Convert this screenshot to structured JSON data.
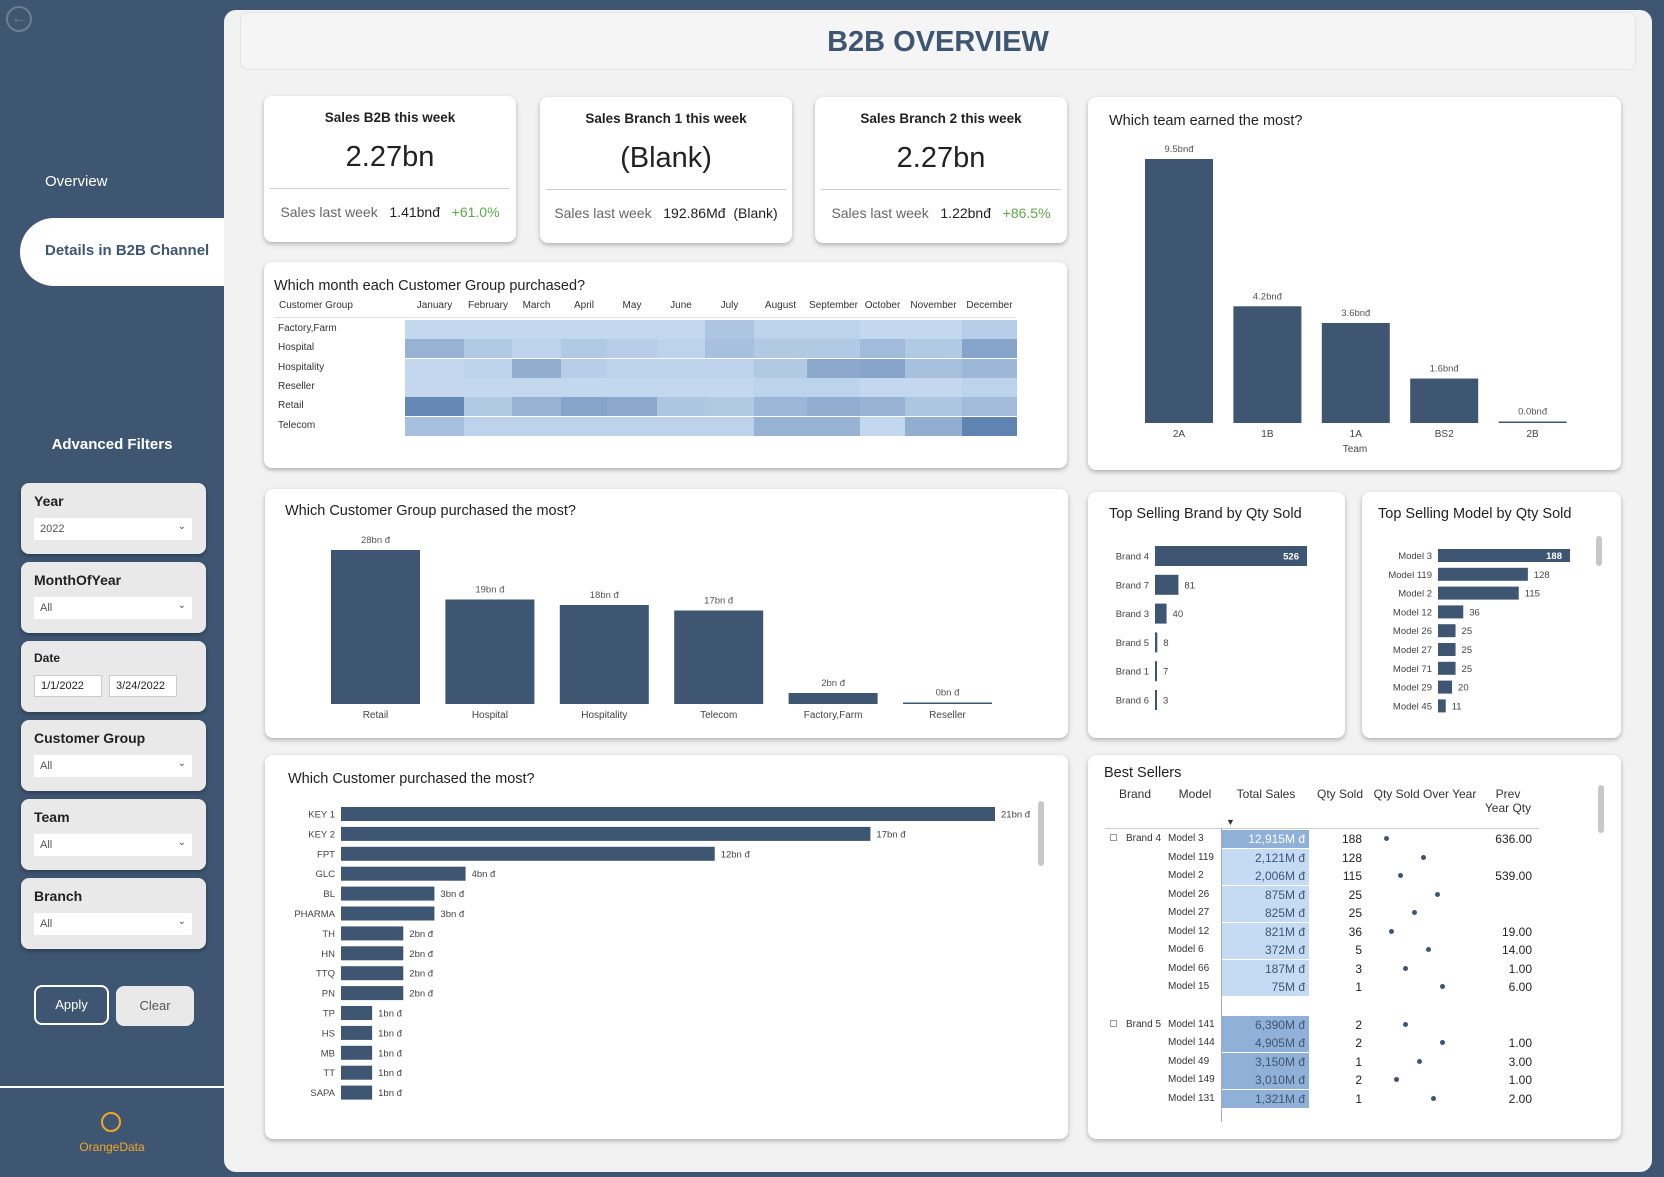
{
  "sidebar": {
    "nav": [
      {
        "label": "Overview"
      },
      {
        "label": "Details in B2B Channel"
      }
    ],
    "advanced_title": "Advanced Filters",
    "filters": {
      "year": {
        "label": "Year",
        "value": "2022"
      },
      "month": {
        "label": "MonthOfYear",
        "value": "All"
      },
      "date": {
        "label": "Date",
        "from": "1/1/2022",
        "to": "3/24/2022"
      },
      "customer_group": {
        "label": "Customer Group",
        "value": "All"
      },
      "team": {
        "label": "Team",
        "value": "All"
      },
      "branch": {
        "label": "Branch",
        "value": "All"
      }
    },
    "apply_label": "Apply",
    "clear_label": "Clear",
    "logo_text": "OrangeData"
  },
  "header": {
    "title": "B2B OVERVIEW"
  },
  "kpis": [
    {
      "title": "Sales B2B this week",
      "value": "2.27bn",
      "last_label": "Sales last week",
      "last_value": "1.41bnđ",
      "change": "+61.0%"
    },
    {
      "title": "Sales Branch 1 this week",
      "value": "(Blank)",
      "last_label": "Sales last week",
      "last_value": "192.86Mđ",
      "change": "(Blank)"
    },
    {
      "title": "Sales Branch 2 this week",
      "value": "2.27bn",
      "last_label": "Sales last week",
      "last_value": "1.22bnđ",
      "change": "+86.5%"
    }
  ],
  "colors": {
    "bar": "#3e5672",
    "green": "#5fa84b",
    "heat_base": "#c8dcf2",
    "heat_dark": "#5a7fae",
    "sales_cell": "#c4dbf3",
    "sales_dark": "#8fb1d8"
  },
  "heatmap": {
    "title": "Which month each Customer Group purchased?",
    "col_header": "Customer Group",
    "months": [
      "January",
      "February",
      "March",
      "April",
      "May",
      "June",
      "July",
      "August",
      "September",
      "October",
      "November",
      "December"
    ],
    "groups": [
      "Factory,Farm",
      "Hospital",
      "Hospitality",
      "Reseller",
      "Retail",
      "Telecom"
    ],
    "intensity": [
      [
        0.05,
        0.05,
        0.05,
        0.05,
        0.05,
        0.05,
        0.25,
        0.1,
        0.1,
        0.05,
        0.05,
        0.15
      ],
      [
        0.45,
        0.2,
        0.1,
        0.2,
        0.15,
        0.1,
        0.3,
        0.2,
        0.2,
        0.35,
        0.2,
        0.6
      ],
      [
        0.05,
        0.1,
        0.5,
        0.15,
        0.1,
        0.1,
        0.1,
        0.2,
        0.55,
        0.6,
        0.3,
        0.4
      ],
      [
        0.05,
        0.05,
        0.05,
        0.05,
        0.05,
        0.05,
        0.05,
        0.1,
        0.1,
        0.05,
        0.05,
        0.1
      ],
      [
        0.9,
        0.2,
        0.45,
        0.6,
        0.55,
        0.25,
        0.2,
        0.4,
        0.5,
        0.45,
        0.25,
        0.35
      ],
      [
        0.3,
        0.1,
        0.1,
        0.1,
        0.1,
        0.1,
        0.1,
        0.45,
        0.45,
        0.05,
        0.5,
        0.95
      ]
    ]
  },
  "team_chart": {
    "title": "Which team earned the most?",
    "xlabel": "Team",
    "categories": [
      "2A",
      "1B",
      "1A",
      "BS2",
      "2B"
    ],
    "values": [
      9.5,
      4.2,
      3.6,
      1.6,
      0.0
    ],
    "labels": [
      "9.5bnđ",
      "4.2bnđ",
      "3.6bnđ",
      "1.6bnđ",
      "0.0bnđ"
    ]
  },
  "group_chart": {
    "title": "Which Customer Group purchased the most?",
    "categories": [
      "Retail",
      "Hospital",
      "Hospitality",
      "Telecom",
      "Factory,Farm",
      "Reseller"
    ],
    "values": [
      28,
      19,
      18,
      17,
      2,
      0
    ],
    "labels": [
      "28bn đ",
      "19bn đ",
      "18bn đ",
      "17bn đ",
      "2bn đ",
      "0bn đ"
    ]
  },
  "brand_chart": {
    "title": "Top Selling Brand by Qty Sold",
    "categories": [
      "Brand 4",
      "Brand 7",
      "Brand 3",
      "Brand 5",
      "Brand 1",
      "Brand 6"
    ],
    "values": [
      526,
      81,
      40,
      8,
      7,
      3
    ]
  },
  "model_chart": {
    "title": "Top Selling Model by Qty Sold",
    "categories": [
      "Model 3",
      "Model 119",
      "Model 2",
      "Model 12",
      "Model 26",
      "Model 27",
      "Model 71",
      "Model 29",
      "Model 45"
    ],
    "values": [
      188,
      128,
      115,
      36,
      25,
      25,
      25,
      20,
      11
    ]
  },
  "customer_chart": {
    "title": "Which Customer purchased the most?",
    "categories": [
      "KEY 1",
      "KEY 2",
      "FPT",
      "GLC",
      "BL",
      "PHARMA",
      "TH",
      "HN",
      "TTQ",
      "PN",
      "TP",
      "HS",
      "MB",
      "TT",
      "SAPA"
    ],
    "values": [
      21,
      17,
      12,
      4,
      3,
      3,
      2,
      2,
      2,
      2,
      1,
      1,
      1,
      1,
      1
    ],
    "labels": [
      "21bn đ",
      "17bn đ",
      "12bn đ",
      "4bn đ",
      "3bn đ",
      "3bn đ",
      "2bn đ",
      "2bn đ",
      "2bn đ",
      "2bn đ",
      "1bn đ",
      "1bn đ",
      "1bn đ",
      "1bn đ",
      "1bn đ"
    ]
  },
  "best_sellers": {
    "title": "Best Sellers",
    "headers": {
      "brand": "Brand",
      "model": "Model",
      "total": "Total Sales",
      "qty": "Qty Sold",
      "trend": "Qty Sold Over Year",
      "prev1": "Prev",
      "prev2": "Year Qty"
    },
    "groups": [
      {
        "brand": "Brand 4",
        "rows": [
          {
            "model": "Model 3",
            "sales": "12,915M đ",
            "qty": "188",
            "prev": "636.00"
          },
          {
            "model": "Model 119",
            "sales": "2,121M đ",
            "qty": "128",
            "prev": ""
          },
          {
            "model": "Model 2",
            "sales": "2,006M đ",
            "qty": "115",
            "prev": "539.00"
          },
          {
            "model": "Model 26",
            "sales": "875M đ",
            "qty": "25",
            "prev": ""
          },
          {
            "model": "Model 27",
            "sales": "825M đ",
            "qty": "25",
            "prev": ""
          },
          {
            "model": "Model 12",
            "sales": "821M đ",
            "qty": "36",
            "prev": "19.00"
          },
          {
            "model": "Model 6",
            "sales": "372M đ",
            "qty": "5",
            "prev": "14.00"
          },
          {
            "model": "Model 66",
            "sales": "187M đ",
            "qty": "3",
            "prev": "1.00"
          },
          {
            "model": "Model 15",
            "sales": "75M đ",
            "qty": "1",
            "prev": "6.00"
          }
        ]
      },
      {
        "brand": "Brand 5",
        "rows": [
          {
            "model": "Model 141",
            "sales": "6,390M đ",
            "qty": "2",
            "prev": ""
          },
          {
            "model": "Model 144",
            "sales": "4,905M đ",
            "qty": "2",
            "prev": "1.00"
          },
          {
            "model": "Model 49",
            "sales": "3,150M đ",
            "qty": "1",
            "prev": "3.00"
          },
          {
            "model": "Model 149",
            "sales": "3,010M đ",
            "qty": "2",
            "prev": "1.00"
          },
          {
            "model": "Model 131",
            "sales": "1,321M đ",
            "qty": "1",
            "prev": "2.00"
          }
        ]
      }
    ]
  }
}
